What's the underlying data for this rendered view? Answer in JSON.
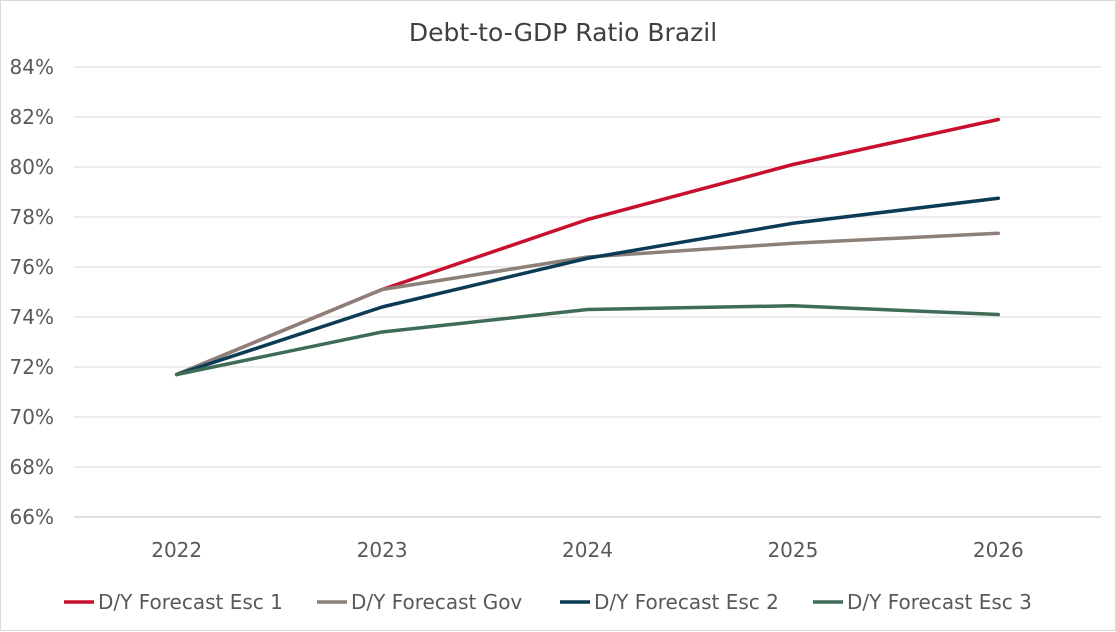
{
  "chart_data": {
    "type": "line",
    "title": "Debt-to-GDP Ratio Brazil",
    "xlabel": "",
    "ylabel": "",
    "categories": [
      "2022",
      "2023",
      "2024",
      "2025",
      "2026"
    ],
    "ylim": [
      66,
      84
    ],
    "yticks": [
      "66%",
      "68%",
      "70%",
      "72%",
      "74%",
      "76%",
      "78%",
      "80%",
      "82%",
      "84%"
    ],
    "grid": true,
    "legend_position": "bottom",
    "series": [
      {
        "name": "D/Y Forecast Esc 1",
        "color": "#C8102E",
        "values": [
          71.7,
          75.1,
          77.9,
          80.1,
          81.9
        ]
      },
      {
        "name": "D/Y Forecast Gov",
        "color": "#8C8079",
        "values": [
          71.7,
          75.1,
          76.4,
          76.95,
          77.35
        ]
      },
      {
        "name": "D/Y Forecast Esc 2",
        "color": "#0C3B55",
        "values": [
          71.7,
          74.4,
          76.35,
          77.75,
          78.75
        ]
      },
      {
        "name": "D/Y Forecast Esc 3",
        "color": "#3F6C56",
        "values": [
          71.7,
          73.4,
          74.3,
          74.45,
          74.1
        ]
      }
    ]
  }
}
